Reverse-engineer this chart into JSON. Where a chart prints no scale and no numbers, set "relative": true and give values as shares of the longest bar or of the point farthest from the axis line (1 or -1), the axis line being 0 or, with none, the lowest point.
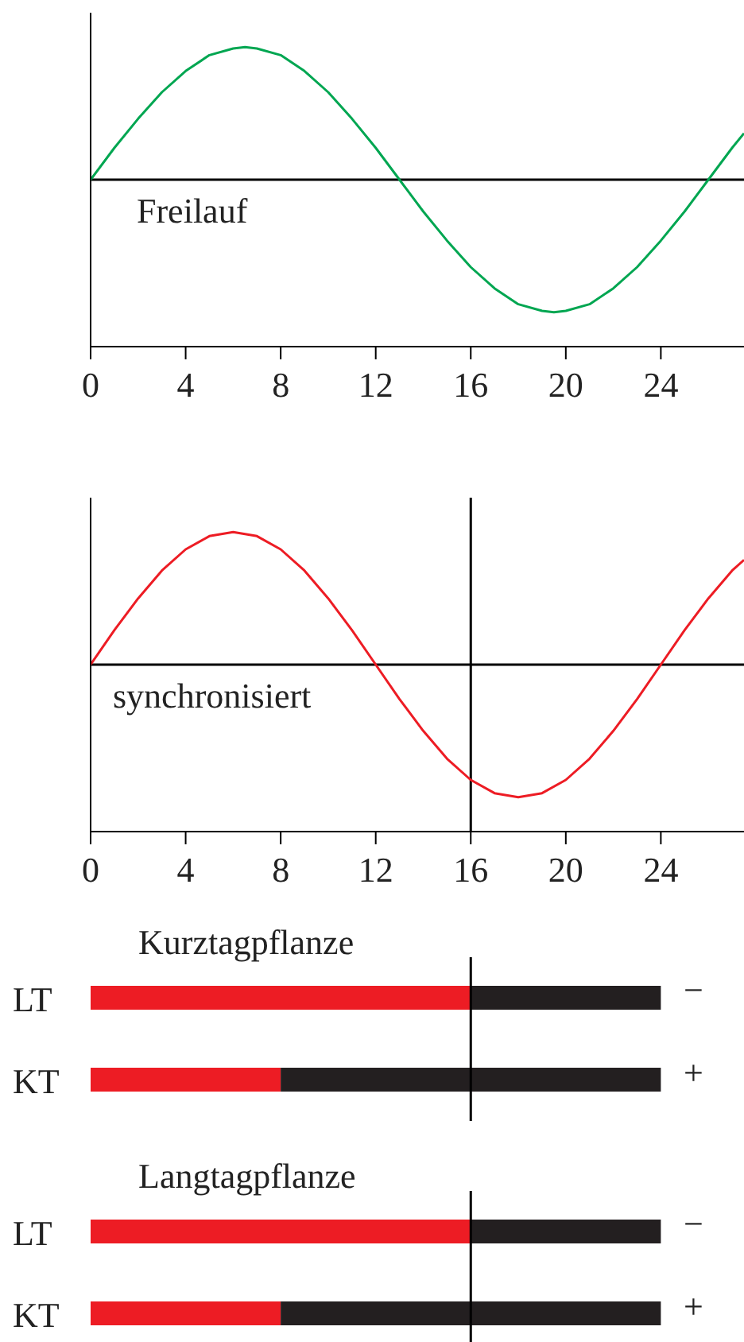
{
  "chart_data": [
    {
      "type": "line",
      "relative": true,
      "x": [
        0,
        1,
        2,
        3,
        4,
        5,
        6,
        6.5,
        7,
        8,
        9,
        10,
        11,
        12,
        13,
        14,
        15,
        16,
        17,
        18,
        19,
        19.5,
        20,
        21,
        22,
        23,
        24,
        25,
        26,
        27,
        27.5
      ],
      "series": [
        {
          "color": "#00a651",
          "values": [
            0,
            0.24,
            0.46,
            0.66,
            0.82,
            0.94,
            0.99,
            1,
            0.99,
            0.94,
            0.82,
            0.66,
            0.46,
            0.24,
            0,
            -0.24,
            -0.46,
            -0.66,
            -0.82,
            -0.94,
            -0.99,
            -1,
            -0.99,
            -0.94,
            -0.82,
            -0.66,
            -0.46,
            -0.24,
            0,
            0.24,
            0.35
          ]
        }
      ],
      "xlim": [
        0,
        27.5
      ],
      "xticks": [
        0,
        4,
        8,
        12,
        16,
        20,
        24
      ],
      "ref_lines": [
        {
          "axis": "y",
          "value": 0
        }
      ],
      "annotations": [
        "Freilauf"
      ]
    },
    {
      "type": "line",
      "relative": true,
      "x": [
        0,
        1,
        2,
        3,
        4,
        5,
        6,
        7,
        8,
        9,
        10,
        11,
        12,
        13,
        14,
        15,
        16,
        17,
        18,
        19,
        20,
        21,
        22,
        23,
        24,
        25,
        26,
        27,
        27.5
      ],
      "series": [
        {
          "color": "#ed1c24",
          "values": [
            0,
            0.26,
            0.5,
            0.71,
            0.87,
            0.97,
            1,
            0.97,
            0.87,
            0.71,
            0.5,
            0.26,
            0,
            -0.26,
            -0.5,
            -0.71,
            -0.87,
            -0.97,
            -1,
            -0.97,
            -0.87,
            -0.71,
            -0.5,
            -0.26,
            0,
            0.26,
            0.5,
            0.71,
            0.79
          ]
        }
      ],
      "xlim": [
        0,
        27.5
      ],
      "xticks": [
        0,
        4,
        8,
        12,
        16,
        20,
        24
      ],
      "ref_lines": [
        {
          "axis": "y",
          "value": 0
        },
        {
          "axis": "x",
          "value": 16
        }
      ],
      "annotations": [
        "synchronisiert"
      ]
    },
    {
      "type": "bar",
      "orientation": "horizontal",
      "stacked": true,
      "title": "Kurztagpflanze",
      "categories": [
        "LT",
        "KT"
      ],
      "series": [
        {
          "color": "#ed1c24",
          "values": [
            16,
            8
          ]
        },
        {
          "color": "#231f20",
          "values": [
            8,
            16
          ]
        }
      ],
      "xlim": [
        0,
        27.5
      ],
      "tick_labels": "y",
      "ref_lines": [
        {
          "axis": "x",
          "value": 16
        }
      ],
      "annotations": [
        "−",
        "+"
      ]
    },
    {
      "type": "bar",
      "orientation": "horizontal",
      "stacked": true,
      "title": "Langtagpflanze",
      "categories": [
        "LT",
        "KT"
      ],
      "series": [
        {
          "color": "#ed1c24",
          "values": [
            16,
            8
          ]
        },
        {
          "color": "#231f20",
          "values": [
            8,
            16
          ]
        }
      ],
      "xlim": [
        0,
        27.5
      ],
      "tick_labels": "y",
      "ref_lines": [
        {
          "axis": "x",
          "value": 16
        }
      ],
      "annotations": [
        "−",
        "+"
      ]
    }
  ]
}
